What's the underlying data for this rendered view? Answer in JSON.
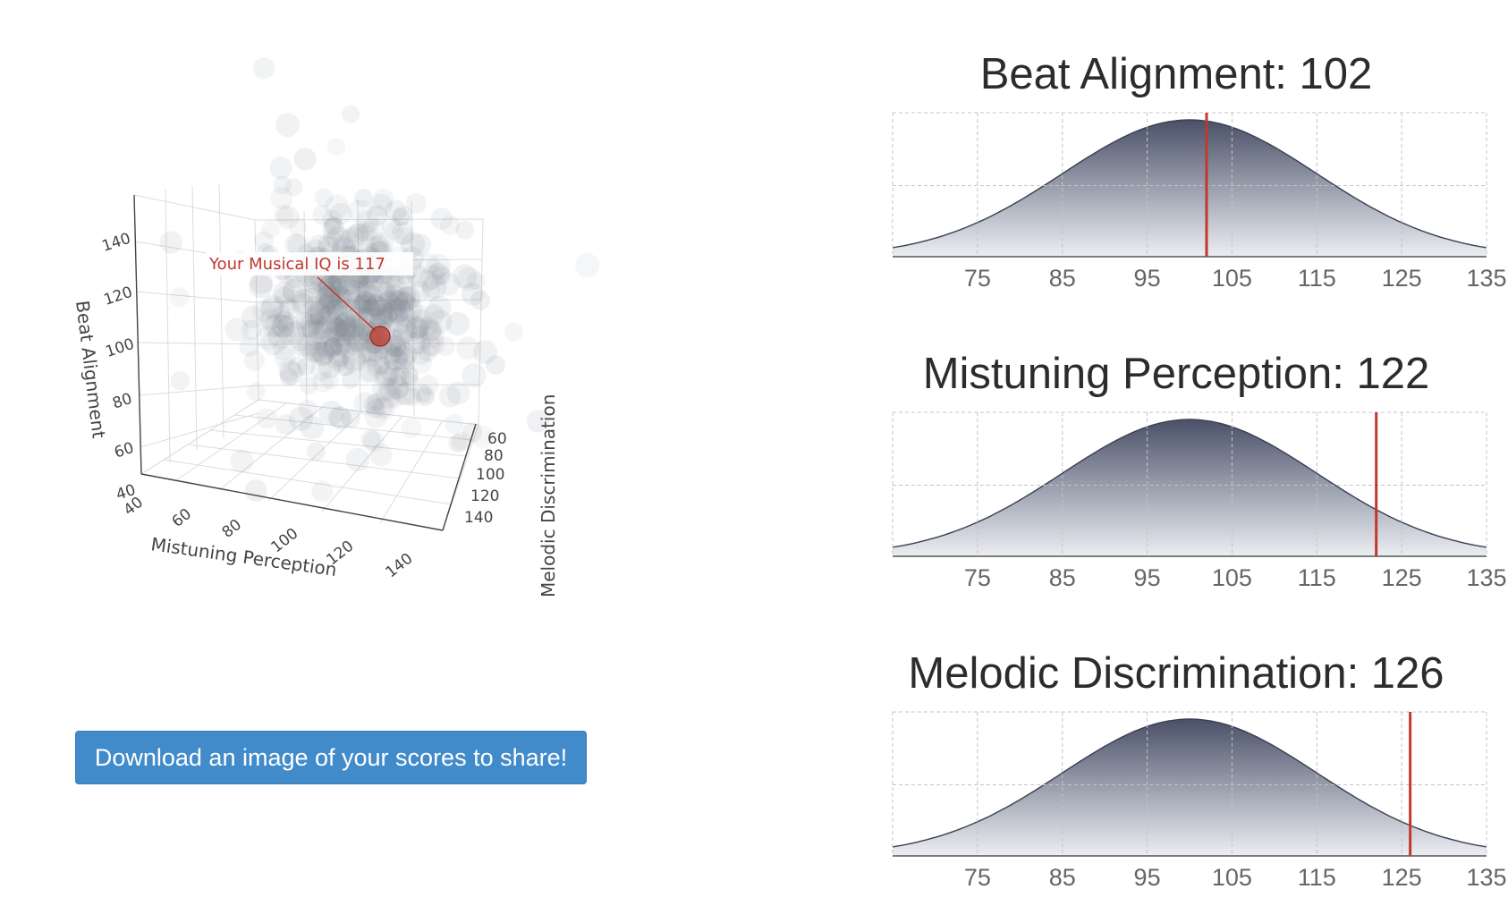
{
  "scatter3d": {
    "annotation": "Your Musical IQ is 117",
    "colors": {
      "cloud": "#7a808e",
      "marker": "#c0392b",
      "annotation": "#c0392b",
      "axis": "#444444"
    },
    "axes": {
      "x": {
        "label": "Mistuning Perception",
        "ticks": [
          "40",
          "60",
          "80",
          "100",
          "120",
          "140"
        ]
      },
      "y": {
        "label": "Melodic Discrimination",
        "ticks": [
          "60",
          "80",
          "100",
          "120",
          "140"
        ]
      },
      "z": {
        "label": "Beat Alignment",
        "ticks": [
          "40",
          "60",
          "80",
          "100",
          "120",
          "140"
        ]
      }
    },
    "user_point": {
      "mistuning_perception": 122,
      "melodic_discrimination": 126,
      "beat_alignment": 102
    }
  },
  "download_button": {
    "label": "Download an image of your scores to share!"
  },
  "chart_data": [
    {
      "type": "area",
      "title": "Beat Alignment: 102",
      "x_ticks": [
        75,
        85,
        95,
        105,
        115,
        125,
        135
      ],
      "xlim": [
        65,
        135
      ],
      "distribution": {
        "mean": 100,
        "sd": 15
      },
      "marker_value": 102,
      "grid": true
    },
    {
      "type": "area",
      "title": "Mistuning Perception: 122",
      "x_ticks": [
        75,
        85,
        95,
        105,
        115,
        125,
        135
      ],
      "xlim": [
        65,
        135
      ],
      "distribution": {
        "mean": 100,
        "sd": 15
      },
      "marker_value": 122,
      "grid": true
    },
    {
      "type": "area",
      "title": "Melodic Discrimination: 126",
      "x_ticks": [
        75,
        85,
        95,
        105,
        115,
        125,
        135
      ],
      "xlim": [
        65,
        135
      ],
      "distribution": {
        "mean": 100,
        "sd": 15
      },
      "marker_value": 126,
      "grid": true
    }
  ]
}
